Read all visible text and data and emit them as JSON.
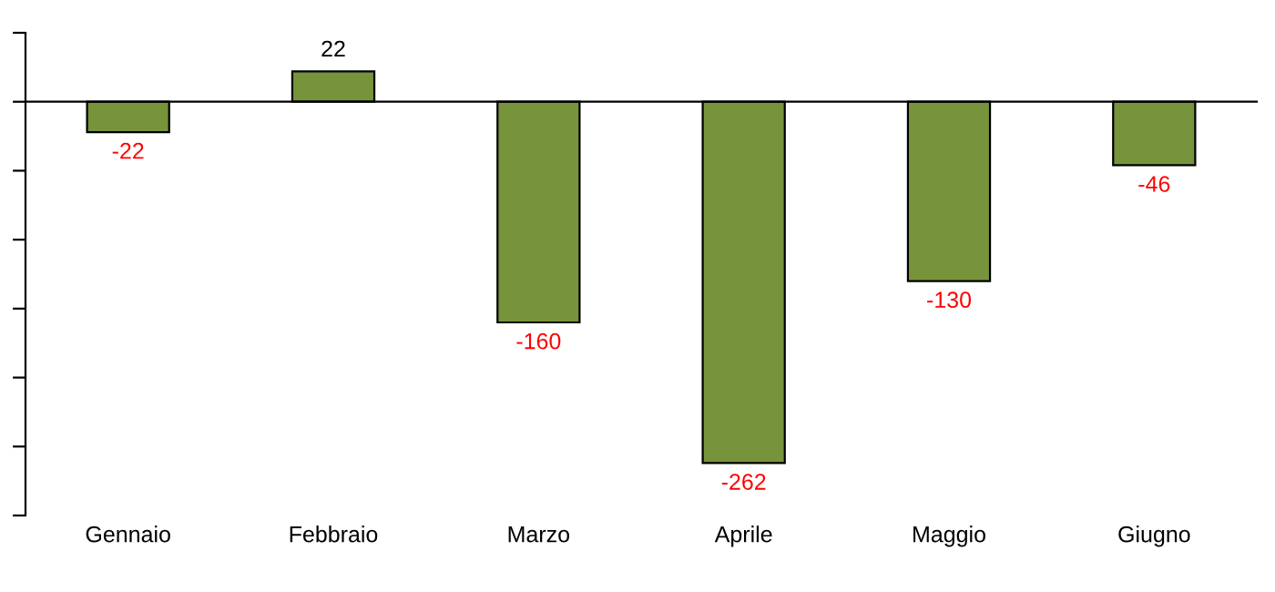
{
  "chart_data": {
    "type": "bar",
    "categories": [
      "Gennaio",
      "Febbraio",
      "Marzo",
      "Aprile",
      "Maggio",
      "Giugno"
    ],
    "values": [
      -22,
      22,
      -160,
      -262,
      -130,
      -46
    ],
    "color": "#77933c",
    "data_labels": true,
    "ylim": [
      -300,
      50
    ],
    "yticks": [
      {
        "value": 50,
        "label": null
      },
      {
        "value": 0,
        "label": null
      },
      {
        "value": -50,
        "label": null
      },
      {
        "value": -100,
        "label": null
      },
      {
        "value": -150,
        "label": null
      },
      {
        "value": -200,
        "label": null
      },
      {
        "value": -250,
        "label": null
      },
      {
        "value": -300,
        "label": null
      }
    ],
    "grid": false,
    "legend": false
  }
}
